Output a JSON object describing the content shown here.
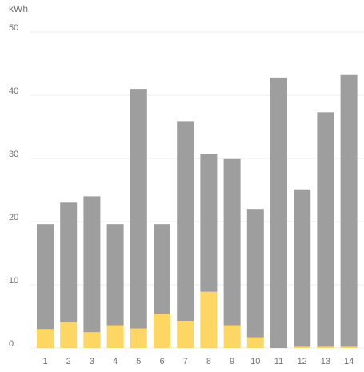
{
  "chart_data": {
    "type": "bar",
    "stacked": true,
    "ylabel": "kWh",
    "ylim": [
      0,
      50
    ],
    "yticks": [
      0,
      10,
      20,
      30,
      40,
      50
    ],
    "grid": true,
    "legend": "none",
    "categories": [
      "1",
      "2",
      "3",
      "4",
      "5",
      "6",
      "7",
      "8",
      "9",
      "10",
      "11",
      "12",
      "13",
      "14"
    ],
    "series": [
      {
        "color": "#fdd663",
        "values": [
          3.0,
          4.1,
          2.5,
          3.6,
          3.1,
          5.4,
          4.3,
          8.9,
          3.6,
          1.7,
          0.0,
          0.2,
          0.2,
          0.2
        ]
      },
      {
        "color": "#9e9e9e",
        "values": [
          16.6,
          18.9,
          21.5,
          16.0,
          37.9,
          14.2,
          31.6,
          21.8,
          26.3,
          20.3,
          42.8,
          24.9,
          37.1,
          43.0
        ]
      }
    ]
  }
}
